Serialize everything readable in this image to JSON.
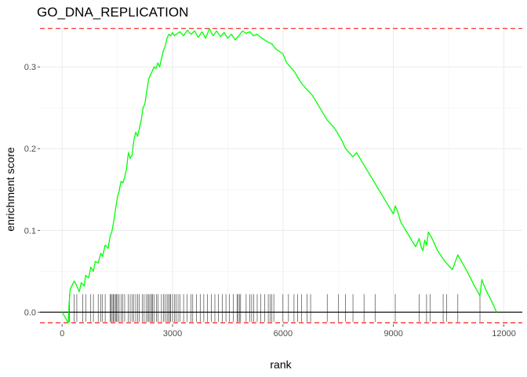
{
  "chart_data": {
    "type": "line",
    "title": "GO_DNA_REPLICATION",
    "xlabel": "rank",
    "ylabel": "enrichment score",
    "xlim": [
      -600,
      12500
    ],
    "ylim": [
      -0.015,
      0.353
    ],
    "x_ticks": [
      0,
      3000,
      6000,
      9000,
      12000
    ],
    "x_tick_labels": [
      "0",
      "3000",
      "6000",
      "9000",
      "12000"
    ],
    "y_ticks": [
      0.0,
      0.1,
      0.2,
      0.3
    ],
    "y_tick_labels": [
      "0.0",
      "0.1",
      "0.2",
      "0.3"
    ],
    "grid": true,
    "colors": {
      "curve": "#00ff00",
      "threshold": "#ff0000",
      "zero_line": "#000000",
      "hits": "#000000",
      "grid": "#ebebeb"
    },
    "threshold_lines": [
      0.347,
      -0.013
    ],
    "zero_line": 0,
    "series": [
      {
        "x": [
          0,
          170,
          190,
          220,
          330,
          400,
          470,
          520,
          600,
          640,
          720,
          780,
          850,
          900,
          980,
          1050,
          1100,
          1170,
          1250,
          1300,
          1350,
          1400,
          1450,
          1500,
          1550,
          1600,
          1650,
          1700,
          1750,
          1800,
          1850,
          1900,
          1950,
          2000,
          2050,
          2100,
          2150,
          2200,
          2250,
          2300,
          2350,
          2400,
          2450,
          2500,
          2550,
          2600,
          2650,
          2700,
          2750,
          2800,
          2850,
          2900,
          2950,
          3000,
          3050,
          3100,
          3200,
          3300,
          3400,
          3500,
          3600,
          3700,
          3800,
          3900,
          4000,
          4100,
          4200,
          4300,
          4400,
          4500,
          4600,
          4700,
          4800,
          4900,
          5000,
          5100,
          5200,
          5300,
          5400,
          5500,
          5600,
          5700,
          5800,
          6000,
          6100,
          6300,
          6500,
          6700,
          6800,
          7000,
          7200,
          7400,
          7600,
          7700,
          7900,
          8000,
          8200,
          8400,
          8600,
          8800,
          9000,
          9050,
          9100,
          9200,
          9400,
          9600,
          9700,
          9750,
          9800,
          9850,
          9900,
          9950,
          10050,
          10200,
          10400,
          10600,
          10750,
          11000,
          11200,
          11350,
          11400,
          11500,
          11650,
          11800
        ],
        "y": [
          0.0,
          -0.013,
          0.01,
          0.028,
          0.038,
          0.032,
          0.025,
          0.036,
          0.032,
          0.045,
          0.042,
          0.055,
          0.05,
          0.062,
          0.06,
          0.072,
          0.068,
          0.082,
          0.078,
          0.092,
          0.098,
          0.11,
          0.125,
          0.14,
          0.148,
          0.16,
          0.158,
          0.165,
          0.175,
          0.195,
          0.188,
          0.192,
          0.21,
          0.22,
          0.215,
          0.225,
          0.235,
          0.25,
          0.255,
          0.27,
          0.285,
          0.29,
          0.295,
          0.3,
          0.298,
          0.305,
          0.3,
          0.31,
          0.32,
          0.325,
          0.335,
          0.34,
          0.338,
          0.342,
          0.338,
          0.34,
          0.343,
          0.338,
          0.345,
          0.34,
          0.344,
          0.336,
          0.343,
          0.335,
          0.347,
          0.338,
          0.344,
          0.337,
          0.342,
          0.335,
          0.34,
          0.333,
          0.338,
          0.344,
          0.341,
          0.343,
          0.338,
          0.34,
          0.336,
          0.333,
          0.33,
          0.328,
          0.322,
          0.316,
          0.305,
          0.295,
          0.28,
          0.27,
          0.265,
          0.25,
          0.235,
          0.225,
          0.21,
          0.2,
          0.19,
          0.195,
          0.18,
          0.165,
          0.15,
          0.135,
          0.12,
          0.13,
          0.125,
          0.11,
          0.095,
          0.08,
          0.09,
          0.08,
          0.075,
          0.088,
          0.082,
          0.098,
          0.09,
          0.075,
          0.062,
          0.052,
          0.07,
          0.05,
          0.032,
          0.02,
          0.04,
          0.028,
          0.015,
          0.0
        ]
      }
    ],
    "hits": [
      200,
      330,
      400,
      560,
      640,
      780,
      850,
      980,
      1050,
      1100,
      1170,
      1300,
      1330,
      1360,
      1390,
      1420,
      1450,
      1480,
      1510,
      1550,
      1600,
      1650,
      1700,
      1800,
      1850,
      1900,
      1950,
      2000,
      2050,
      2100,
      2180,
      2230,
      2280,
      2330,
      2360,
      2400,
      2430,
      2460,
      2500,
      2560,
      2600,
      2700,
      2750,
      2800,
      2850,
      2880,
      2920,
      2950,
      3000,
      3050,
      3100,
      3150,
      3200,
      3300,
      3400,
      3500,
      3550,
      3650,
      3750,
      3850,
      3950,
      4050,
      4150,
      4250,
      4350,
      4450,
      4550,
      4650,
      4750,
      4780,
      4820,
      4850,
      5000,
      5100,
      5150,
      5200,
      5300,
      5400,
      5500,
      5600,
      5650,
      5700,
      5750,
      6000,
      6150,
      6300,
      6400,
      6500,
      6650,
      6750,
      7200,
      7500,
      7700,
      7900,
      8200,
      8500,
      9050,
      9700,
      9900,
      10000,
      10350,
      10450,
      10750,
      11350
    ]
  }
}
